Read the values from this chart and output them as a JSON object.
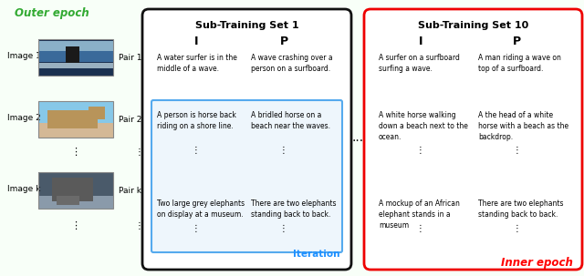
{
  "outer_epoch_label": "Outer epoch",
  "inner_epoch_label": "Inner epoch",
  "iteration_label": "Iteration",
  "outer_epoch_color": "#33aa33",
  "inner_epoch_color": "#ff0000",
  "iteration_color": "#1e90ff",
  "sub1_title": "Sub-Training Set 1",
  "sub10_title": "Sub-Training Set 10",
  "col_I": "I",
  "col_P": "P",
  "image_labels": [
    "Image 1",
    "Image 2",
    "Image k"
  ],
  "pair_labels": [
    "Pair 1",
    "Pair 2",
    "Pair k"
  ],
  "sub1_I": [
    "A water surfer is in the\nmiddle of a wave.",
    "A person is horse back\nriding on a shore line.",
    "Two large grey elephants\non display at a museum."
  ],
  "sub1_P": [
    "A wave crashing over a\nperson on a surfboard.",
    "A bridled horse on a\nbeach near the waves.",
    "There are two elephants\nstanding back to back."
  ],
  "sub10_I": [
    "A surfer on a surfboard\nsurfing a wave.",
    "A white horse walking\ndown a beach next to the\nocean.",
    "A mockup of an African\nelephant stands in a\nmuseum"
  ],
  "sub10_P": [
    "A man riding a wave on\ntop of a surfboard.",
    "A the head of a white\nhorse with a beach as the\nbackdrop.",
    "There are two elephants\nstanding back to back."
  ],
  "bg_color": "#ffffff",
  "outer_box_color": "#44bb44",
  "sub1_box_color": "#111111",
  "sub10_box_color": "#ee0000",
  "highlight_edge_color": "#55aaee",
  "highlight_face_color": "#eef6fc",
  "dots": "..."
}
